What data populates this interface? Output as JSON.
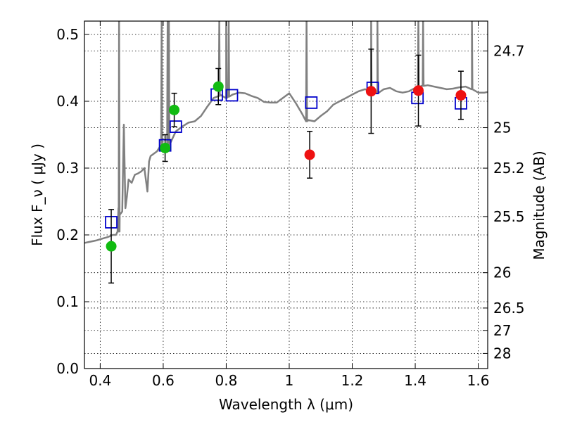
{
  "chart_data": {
    "type": "scatter",
    "xlabel": "Wavelength  λ (μm)",
    "ylabel": "Flux  F_ν  ( μJy )",
    "y2label": "Magnitude (AB)",
    "xlim": [
      0.35,
      1.63
    ],
    "ylim": [
      0.0,
      0.52
    ],
    "grid": true,
    "x_ticks": [
      0.4,
      0.6,
      0.8,
      1.0,
      1.2,
      1.4,
      1.6
    ],
    "x_tick_labels": [
      "0.4",
      "0.6",
      "0.8",
      "1",
      "1.2",
      "1.4",
      "1.6"
    ],
    "y_ticks": [
      0.0,
      0.1,
      0.2,
      0.3,
      0.4,
      0.5
    ],
    "y_tick_labels": [
      "0.0",
      "0.1",
      "0.2",
      "0.3",
      "0.4",
      "0.5"
    ],
    "right_ticks": [
      {
        "mag": "24.7",
        "flux": 0.4753
      },
      {
        "mag": "25",
        "flux": 0.3605
      },
      {
        "mag": "25.2",
        "flux": 0.2999
      },
      {
        "mag": "25.5",
        "flux": 0.2275
      },
      {
        "mag": "26",
        "flux": 0.1435
      },
      {
        "mag": "26.5",
        "flux": 0.0906
      },
      {
        "mag": "27",
        "flux": 0.0571
      },
      {
        "mag": "28",
        "flux": 0.0227
      }
    ],
    "series": [
      {
        "style": "green-circle",
        "color": "#11bb11",
        "points": [
          {
            "x": 0.435,
            "y": 0.183,
            "err": 0.055
          },
          {
            "x": 0.606,
            "y": 0.33,
            "err": 0.02
          },
          {
            "x": 0.635,
            "y": 0.387,
            "err": 0.025
          },
          {
            "x": 0.775,
            "y": 0.422,
            "err": 0.027
          }
        ]
      },
      {
        "style": "red-circle",
        "color": "#ee1111",
        "points": [
          {
            "x": 1.065,
            "y": 0.32,
            "err": 0.035
          },
          {
            "x": 1.26,
            "y": 0.415,
            "err": 0.063
          },
          {
            "x": 1.41,
            "y": 0.416,
            "err": 0.053
          },
          {
            "x": 1.545,
            "y": 0.409,
            "err": 0.036
          }
        ]
      },
      {
        "style": "blue-square",
        "color": "#0000cc",
        "points": [
          {
            "x": 0.435,
            "y": 0.219
          },
          {
            "x": 0.606,
            "y": 0.334
          },
          {
            "x": 0.64,
            "y": 0.362
          },
          {
            "x": 0.77,
            "y": 0.41
          },
          {
            "x": 0.818,
            "y": 0.409
          },
          {
            "x": 1.07,
            "y": 0.398
          },
          {
            "x": 1.265,
            "y": 0.42
          },
          {
            "x": 1.407,
            "y": 0.405
          },
          {
            "x": 1.545,
            "y": 0.397
          }
        ]
      }
    ],
    "model_sed": {
      "color": "#808080",
      "points": [
        [
          0.35,
          0.188
        ],
        [
          0.37,
          0.19
        ],
        [
          0.39,
          0.192
        ],
        [
          0.41,
          0.195
        ],
        [
          0.425,
          0.197
        ],
        [
          0.44,
          0.2
        ],
        [
          0.45,
          0.2
        ],
        [
          0.455,
          0.205
        ],
        [
          0.458,
          0.24
        ],
        [
          0.462,
          0.23
        ],
        [
          0.47,
          0.235
        ],
        [
          0.475,
          0.365
        ],
        [
          0.48,
          0.24
        ],
        [
          0.485,
          0.258
        ],
        [
          0.49,
          0.283
        ],
        [
          0.5,
          0.278
        ],
        [
          0.51,
          0.29
        ],
        [
          0.52,
          0.292
        ],
        [
          0.53,
          0.295
        ],
        [
          0.54,
          0.3
        ],
        [
          0.55,
          0.265
        ],
        [
          0.555,
          0.31
        ],
        [
          0.56,
          0.318
        ],
        [
          0.58,
          0.325
        ],
        [
          0.6,
          0.335
        ],
        [
          0.62,
          0.335
        ],
        [
          0.64,
          0.355
        ],
        [
          0.66,
          0.362
        ],
        [
          0.68,
          0.368
        ],
        [
          0.7,
          0.37
        ],
        [
          0.72,
          0.378
        ],
        [
          0.74,
          0.392
        ],
        [
          0.76,
          0.405
        ],
        [
          0.78,
          0.41
        ],
        [
          0.8,
          0.405
        ],
        [
          0.82,
          0.41
        ],
        [
          0.84,
          0.413
        ],
        [
          0.86,
          0.412
        ],
        [
          0.88,
          0.408
        ],
        [
          0.9,
          0.405
        ],
        [
          0.92,
          0.399
        ],
        [
          0.94,
          0.398
        ],
        [
          0.96,
          0.398
        ],
        [
          0.98,
          0.405
        ],
        [
          1.0,
          0.412
        ],
        [
          1.02,
          0.398
        ],
        [
          1.04,
          0.382
        ],
        [
          1.06,
          0.372
        ],
        [
          1.08,
          0.37
        ],
        [
          1.1,
          0.378
        ],
        [
          1.12,
          0.385
        ],
        [
          1.14,
          0.395
        ],
        [
          1.16,
          0.4
        ],
        [
          1.18,
          0.405
        ],
        [
          1.2,
          0.41
        ],
        [
          1.22,
          0.415
        ],
        [
          1.24,
          0.418
        ],
        [
          1.26,
          0.416
        ],
        [
          1.28,
          0.412
        ],
        [
          1.3,
          0.418
        ],
        [
          1.32,
          0.42
        ],
        [
          1.34,
          0.415
        ],
        [
          1.36,
          0.413
        ],
        [
          1.38,
          0.415
        ],
        [
          1.4,
          0.42
        ],
        [
          1.42,
          0.423
        ],
        [
          1.44,
          0.424
        ],
        [
          1.46,
          0.422
        ],
        [
          1.48,
          0.42
        ],
        [
          1.5,
          0.418
        ],
        [
          1.52,
          0.419
        ],
        [
          1.54,
          0.421
        ],
        [
          1.56,
          0.422
        ],
        [
          1.58,
          0.418
        ],
        [
          1.6,
          0.413
        ],
        [
          1.62,
          0.413
        ],
        [
          1.63,
          0.414
        ]
      ],
      "emission_lines": [
        {
          "x": 0.46,
          "peak": 0.52,
          "base": 0.205
        },
        {
          "x": 0.595,
          "peak": 0.52,
          "base": 0.335
        },
        {
          "x": 0.614,
          "peak": 0.52,
          "base": 0.335
        },
        {
          "x": 0.618,
          "peak": 0.52,
          "base": 0.335
        },
        {
          "x": 0.778,
          "peak": 0.52,
          "base": 0.408
        },
        {
          "x": 0.8,
          "peak": 0.52,
          "base": 0.405
        },
        {
          "x": 0.808,
          "peak": 0.52,
          "base": 0.407
        },
        {
          "x": 1.055,
          "peak": 0.52,
          "base": 0.37
        },
        {
          "x": 1.26,
          "peak": 0.52,
          "base": 0.416
        },
        {
          "x": 1.28,
          "peak": 0.52,
          "base": 0.412
        },
        {
          "x": 1.41,
          "peak": 0.52,
          "base": 0.421
        },
        {
          "x": 1.425,
          "peak": 0.52,
          "base": 0.423
        },
        {
          "x": 1.58,
          "peak": 0.52,
          "base": 0.418
        }
      ]
    }
  }
}
